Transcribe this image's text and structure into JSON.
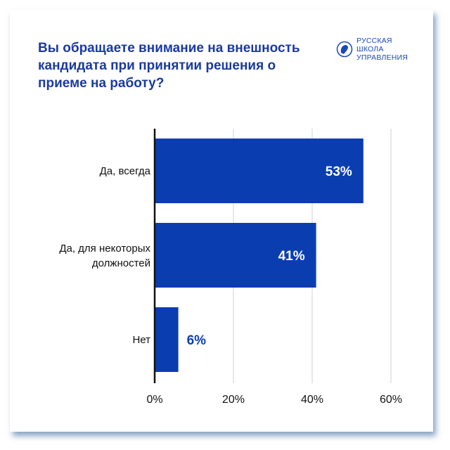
{
  "title": "Вы обращаете внимание на внешность кандидата при принятии решения о приеме на работу?",
  "logo": {
    "text": "РУССКАЯ\nШКОЛА\nУПРАВЛЕНИЯ"
  },
  "chart_data": {
    "type": "bar",
    "orientation": "horizontal",
    "categories": [
      "Да, всегда",
      "Да, для некоторых должностей",
      "Нет"
    ],
    "values": [
      53,
      41,
      6
    ],
    "data_labels": [
      "53%",
      "41%",
      "6%"
    ],
    "xlim": [
      0,
      60
    ],
    "x_ticks": [
      "0%",
      "20%",
      "40%",
      "60%"
    ],
    "grid": "vertical",
    "colors": {
      "bar": "#0a3db0",
      "title": "#1a3a9e",
      "label_outside": "#0a3db0"
    }
  }
}
